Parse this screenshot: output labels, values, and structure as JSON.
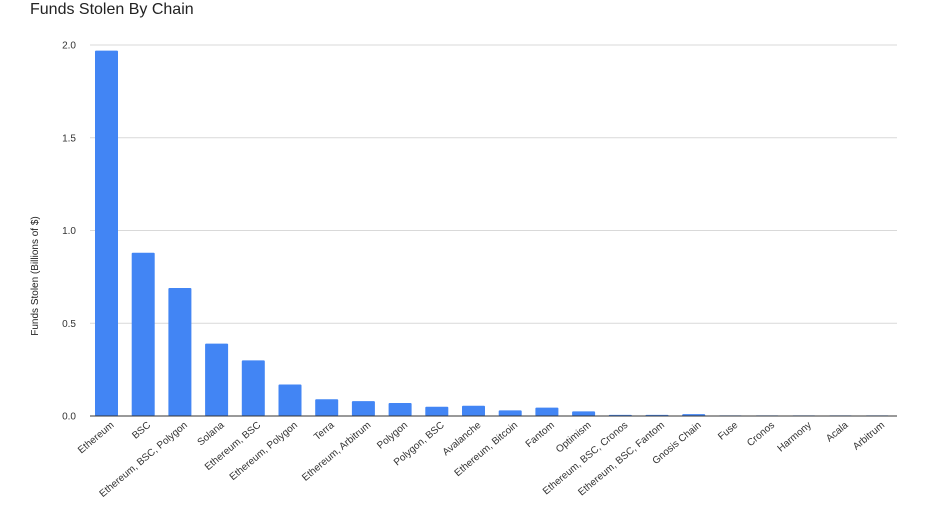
{
  "chart_data": {
    "type": "bar",
    "title": "Funds Stolen By Chain",
    "xlabel": "",
    "ylabel": "Funds Stolen (Billions of $)",
    "ylim": [
      0,
      2.0
    ],
    "yticks": [
      "0.0",
      "0.5",
      "1.0",
      "1.5",
      "2.0"
    ],
    "grid": true,
    "legend": "none",
    "bar_color": "#4285f4",
    "categories": [
      "Ethereum",
      "BSC",
      "Ethereum, BSC, Polygon",
      "Solana",
      "Ethereum, BSC",
      "Ethereum, Polygon",
      "Terra",
      "Ethereum, Arbitrum",
      "Polygon",
      "Polygon, BSC",
      "Avalanche",
      "Ethereum, Bitcoin",
      "Fantom",
      "Optimism",
      "Ethereum, BSC, Cronos",
      "Ethereum, BSC, Fantom",
      "Gnosis Chain",
      "Fuse",
      "Cronos",
      "Harmony",
      "Acala",
      "Arbitrum"
    ],
    "values": [
      1.97,
      0.88,
      0.69,
      0.39,
      0.3,
      0.17,
      0.09,
      0.08,
      0.07,
      0.05,
      0.055,
      0.03,
      0.045,
      0.025,
      0.006,
      0.006,
      0.01,
      0.003,
      0.003,
      0.001,
      0.001,
      0.0005
    ]
  }
}
